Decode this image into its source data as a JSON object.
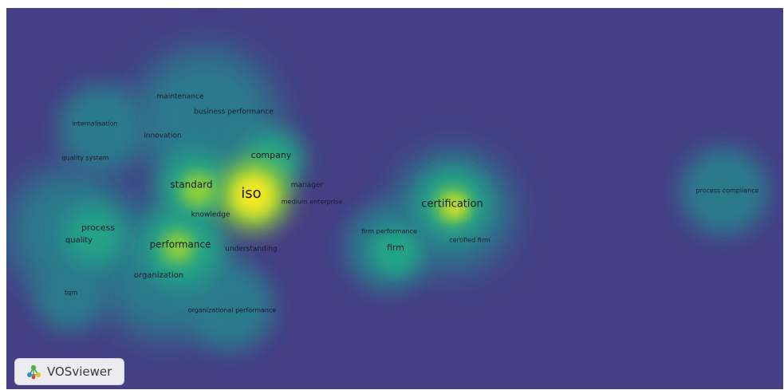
{
  "app": {
    "name": "VOSviewer"
  },
  "colors": {
    "background": "#453f85",
    "hot": "#f2e820",
    "warm": "#8ccf3a",
    "mid": "#22a386",
    "cool": "#2a7a8c"
  },
  "terms": [
    {
      "id": "iso",
      "label": "iso",
      "density": 1.0
    },
    {
      "id": "certification",
      "label": "certification",
      "density": 0.75
    },
    {
      "id": "standard",
      "label": "standard",
      "density": 0.55
    },
    {
      "id": "company",
      "label": "company",
      "density": 0.5
    },
    {
      "id": "performance",
      "label": "performance",
      "density": 0.55
    },
    {
      "id": "process",
      "label": "process",
      "density": 0.45
    },
    {
      "id": "quality",
      "label": "quality",
      "density": 0.45
    },
    {
      "id": "firm",
      "label": "firm",
      "density": 0.5
    },
    {
      "id": "maintenance",
      "label": "maintenance",
      "density": 0.3
    },
    {
      "id": "business-performance",
      "label": "business performance",
      "density": 0.3
    },
    {
      "id": "internalisation",
      "label": "internalisation",
      "density": 0.25
    },
    {
      "id": "innovation",
      "label": "innovation",
      "density": 0.3
    },
    {
      "id": "quality-system",
      "label": "quality system",
      "density": 0.2
    },
    {
      "id": "manager",
      "label": "manager",
      "density": 0.35
    },
    {
      "id": "medium-enterprise",
      "label": "medium enterprise",
      "density": 0.35
    },
    {
      "id": "knowledge",
      "label": "knowledge",
      "density": 0.4
    },
    {
      "id": "understanding",
      "label": "understanding",
      "density": 0.35
    },
    {
      "id": "organization",
      "label": "organization",
      "density": 0.35
    },
    {
      "id": "tqm",
      "label": "tqm",
      "density": 0.25
    },
    {
      "id": "organizational-performance",
      "label": "organizational performance",
      "density": 0.25
    },
    {
      "id": "firm-performance",
      "label": "firm performance",
      "density": 0.35
    },
    {
      "id": "certified-firm",
      "label": "certified firm",
      "density": 0.4
    },
    {
      "id": "process-compliance",
      "label": "process compliance",
      "density": 0.3
    }
  ]
}
